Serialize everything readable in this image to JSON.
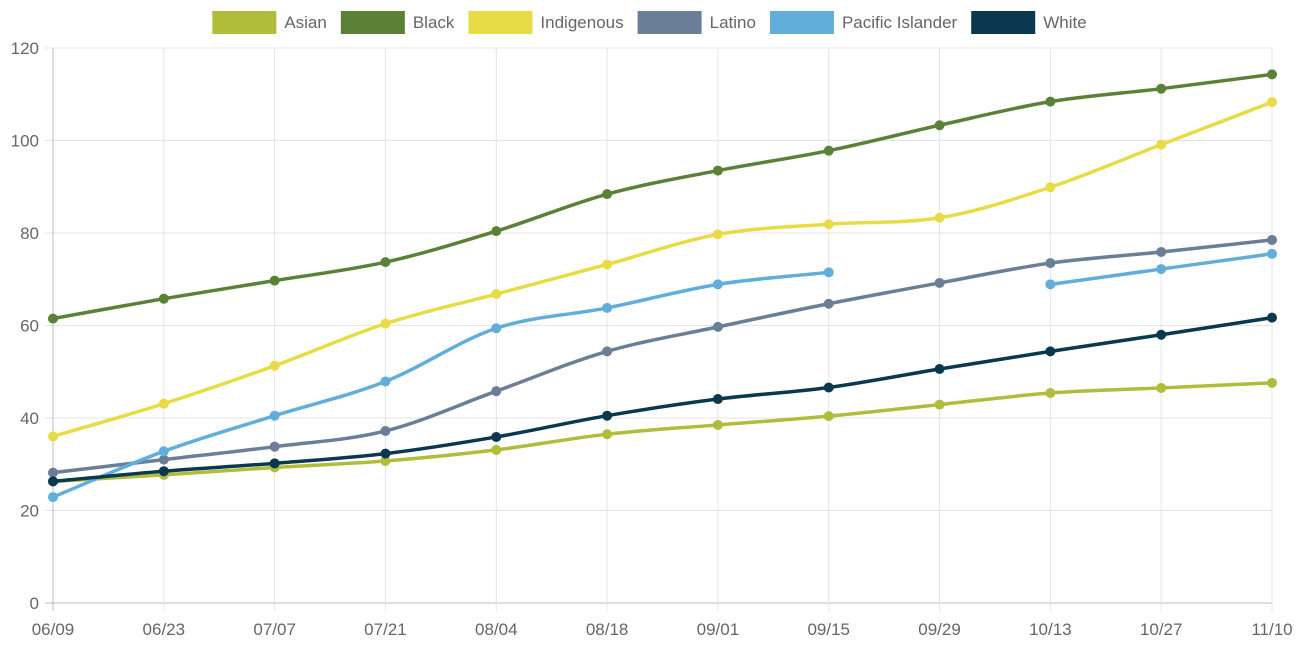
{
  "chart_data": {
    "type": "line",
    "title": "",
    "xlabel": "",
    "ylabel": "",
    "categories": [
      "06/09",
      "06/23",
      "07/07",
      "07/21",
      "08/04",
      "08/18",
      "09/01",
      "09/15",
      "09/29",
      "10/13",
      "10/27",
      "11/10"
    ],
    "ylim": [
      0,
      120
    ],
    "yticks": [
      0,
      20,
      40,
      60,
      80,
      100,
      120
    ],
    "grid": true,
    "legend_position": "top",
    "series": [
      {
        "name": "Asian",
        "color": "#afbd3a",
        "values": [
          26.3,
          27.7,
          29.3,
          30.7,
          33.1,
          36.5,
          38.5,
          40.4,
          42.9,
          45.4,
          46.5,
          47.6
        ]
      },
      {
        "name": "Black",
        "color": "#5a8136",
        "values": [
          61.5,
          65.8,
          69.7,
          73.7,
          80.4,
          88.4,
          93.5,
          97.8,
          103.3,
          108.4,
          111.2,
          114.3
        ]
      },
      {
        "name": "Indigenous",
        "color": "#e7dc45",
        "values": [
          36.0,
          43.1,
          51.3,
          60.4,
          66.8,
          73.2,
          79.7,
          81.9,
          83.3,
          89.9,
          99.1,
          108.3
        ]
      },
      {
        "name": "Latino",
        "color": "#6a7f97",
        "values": [
          28.2,
          31.0,
          33.8,
          37.2,
          45.8,
          54.4,
          59.7,
          64.7,
          69.2,
          73.5,
          75.9,
          78.5
        ]
      },
      {
        "name": "Pacific Islander",
        "color": "#61aedb",
        "values": [
          22.9,
          32.8,
          40.5,
          47.9,
          59.4,
          63.8,
          68.9,
          71.5,
          null,
          68.9,
          72.2,
          75.5
        ]
      },
      {
        "name": "White",
        "color": "#09384f",
        "values": [
          26.3,
          28.5,
          30.2,
          32.3,
          35.9,
          40.5,
          44.1,
          46.6,
          50.6,
          54.4,
          58.0,
          61.7
        ]
      }
    ]
  }
}
